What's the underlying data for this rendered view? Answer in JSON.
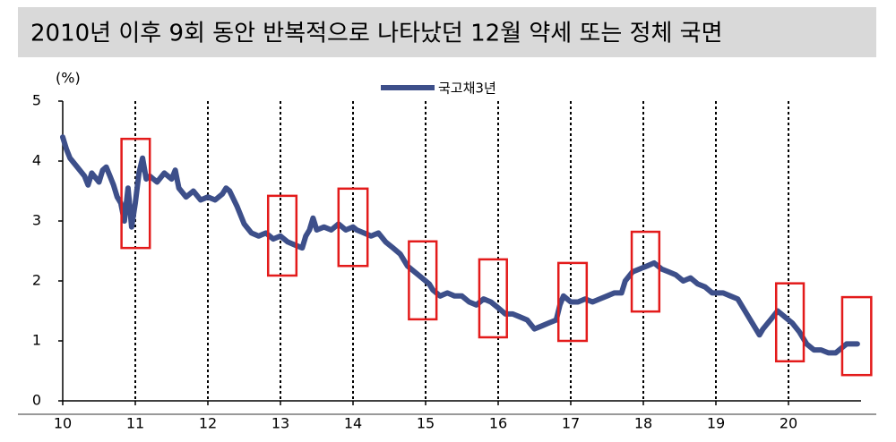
{
  "chart_data": {
    "type": "line",
    "title": "2010년 이후 9회 동안 반복적으로 나타났던 12월 약세 또는 정체 국면",
    "y_unit_label": "(%)",
    "x": [
      10.0,
      10.05,
      10.1,
      10.2,
      10.3,
      10.35,
      10.4,
      10.5,
      10.55,
      10.6,
      10.65,
      10.7,
      10.75,
      10.8,
      10.85,
      10.9,
      10.95,
      11.0,
      11.05,
      11.1,
      11.15,
      11.2,
      11.3,
      11.4,
      11.5,
      11.55,
      11.6,
      11.7,
      11.8,
      11.9,
      12.0,
      12.1,
      12.2,
      12.25,
      12.3,
      12.4,
      12.5,
      12.6,
      12.7,
      12.8,
      12.9,
      13.0,
      13.1,
      13.2,
      13.3,
      13.35,
      13.4,
      13.45,
      13.5,
      13.6,
      13.7,
      13.8,
      13.9,
      14.0,
      14.05,
      14.15,
      14.25,
      14.35,
      14.45,
      14.55,
      14.65,
      14.75,
      14.85,
      14.95,
      15.05,
      15.1,
      15.2,
      15.3,
      15.4,
      15.5,
      15.6,
      15.7,
      15.8,
      15.9,
      16.0,
      16.1,
      16.2,
      16.3,
      16.4,
      16.5,
      16.6,
      16.7,
      16.8,
      16.85,
      16.9,
      17.0,
      17.1,
      17.2,
      17.3,
      17.4,
      17.5,
      17.6,
      17.7,
      17.75,
      17.85,
      17.95,
      18.05,
      18.15,
      18.25,
      18.35,
      18.45,
      18.55,
      18.65,
      18.75,
      18.85,
      18.95,
      19.1,
      19.2,
      19.3,
      19.4,
      19.5,
      19.6,
      19.65,
      19.75,
      19.85,
      19.95,
      20.05,
      20.15,
      20.25,
      20.35,
      20.45,
      20.55,
      20.65,
      20.75,
      20.8,
      20.9,
      20.95
    ],
    "series": [
      {
        "name": "국고채3년",
        "color": "#3d4f8a",
        "values": [
          4.4,
          4.2,
          4.05,
          3.9,
          3.75,
          3.6,
          3.8,
          3.65,
          3.85,
          3.9,
          3.75,
          3.6,
          3.4,
          3.3,
          3.0,
          3.55,
          2.9,
          3.3,
          3.8,
          4.05,
          3.7,
          3.75,
          3.65,
          3.8,
          3.7,
          3.85,
          3.55,
          3.4,
          3.5,
          3.35,
          3.4,
          3.35,
          3.45,
          3.55,
          3.5,
          3.25,
          2.95,
          2.8,
          2.75,
          2.8,
          2.7,
          2.75,
          2.65,
          2.6,
          2.55,
          2.75,
          2.85,
          3.05,
          2.85,
          2.9,
          2.85,
          2.95,
          2.85,
          2.9,
          2.85,
          2.8,
          2.75,
          2.8,
          2.65,
          2.55,
          2.45,
          2.25,
          2.15,
          2.05,
          1.95,
          1.85,
          1.75,
          1.8,
          1.75,
          1.75,
          1.65,
          1.6,
          1.7,
          1.65,
          1.55,
          1.45,
          1.45,
          1.4,
          1.35,
          1.2,
          1.25,
          1.3,
          1.35,
          1.6,
          1.75,
          1.65,
          1.65,
          1.7,
          1.65,
          1.7,
          1.75,
          1.8,
          1.8,
          2.0,
          2.15,
          2.2,
          2.25,
          2.3,
          2.2,
          2.15,
          2.1,
          2.0,
          2.05,
          1.95,
          1.9,
          1.8,
          1.8,
          1.75,
          1.7,
          1.5,
          1.3,
          1.1,
          1.2,
          1.35,
          1.5,
          1.4,
          1.3,
          1.15,
          0.95,
          0.85,
          0.85,
          0.8,
          0.8,
          0.9,
          0.95,
          0.95,
          0.95
        ]
      }
    ],
    "xlim": [
      10,
      21
    ],
    "xticks": [
      10,
      11,
      12,
      13,
      14,
      15,
      16,
      17,
      18,
      19,
      20
    ],
    "ylim": [
      0,
      5
    ],
    "yticks": [
      0,
      1,
      2,
      3,
      4,
      5
    ],
    "grid": true,
    "highlights": [
      {
        "x": [
          10.81,
          11.2
        ],
        "y": [
          2.55,
          4.37
        ]
      },
      {
        "x": [
          12.83,
          13.22
        ],
        "y": [
          2.09,
          3.42
        ]
      },
      {
        "x": [
          13.8,
          14.2
        ],
        "y": [
          2.25,
          3.54
        ]
      },
      {
        "x": [
          14.77,
          15.15
        ],
        "y": [
          1.36,
          2.66
        ]
      },
      {
        "x": [
          15.74,
          16.12
        ],
        "y": [
          1.06,
          2.36
        ]
      },
      {
        "x": [
          16.83,
          17.22
        ],
        "y": [
          1.0,
          2.3
        ]
      },
      {
        "x": [
          17.84,
          18.22
        ],
        "y": [
          1.49,
          2.82
        ]
      },
      {
        "x": [
          19.83,
          20.21
        ],
        "y": [
          0.66,
          1.96
        ]
      },
      {
        "x": [
          20.74,
          21.14
        ],
        "y": [
          0.43,
          1.73
        ]
      }
    ],
    "highlight_color": "#e31b1b"
  }
}
